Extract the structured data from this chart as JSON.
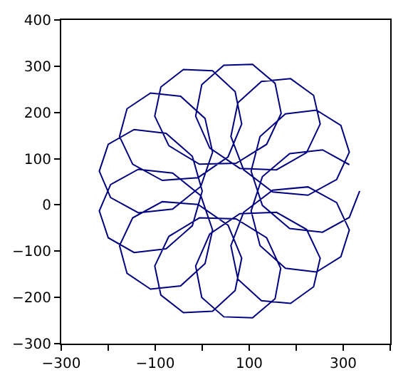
{
  "chart_data": {
    "type": "line",
    "series": [
      {
        "color": "#000080",
        "x": [
          335,
          313,
          256,
          186,
          128,
          104,
          123,
          177,
          243,
          295,
          313,
          286,
          225,
          150,
          88,
          61,
          76,
          126,
          188,
          237,
          251,
          222,
          158,
          80,
          16,
          -14,
          -1,
          46,
          107,
          155,
          168,
          137,
          72,
          -6,
          -71,
          -101,
          -88,
          -40,
          22,
          70,
          84,
          55,
          -9,
          -85,
          -148,
          -176,
          -160,
          -110,
          -46,
          6,
          22,
          -3,
          -63,
          -136,
          -195,
          -219,
          -200,
          -145,
          -77,
          -21,
          0,
          -21,
          -77,
          -145,
          -200,
          -219,
          -195,
          -136,
          -63,
          -3,
          22,
          6,
          -46,
          -110,
          -160,
          -176,
          -148,
          -85,
          -9,
          55,
          84,
          70,
          22,
          -40,
          -88,
          -101,
          -71,
          -6,
          72,
          137,
          167,
          155,
          107,
          46,
          -1,
          -14,
          16,
          80,
          158,
          222,
          251,
          237,
          188,
          126,
          76,
          61,
          88,
          150,
          225,
          286,
          313,
          295,
          243,
          177,
          123,
          104,
          128,
          186,
          256,
          313
        ],
        "values": [
          30,
          -27,
          -59,
          -51,
          -1,
          73,
          148,
          197,
          205,
          172,
          114,
          55,
          21,
          28,
          76,
          148,
          221,
          267,
          273,
          237,
          175,
          113,
          76,
          79,
          123,
          192,
          260,
          302,
          304,
          263,
          198,
          131,
          90,
          88,
          128,
          192,
          255,
          293,
          290,
          245,
          175,
          104,
          59,
          53,
          88,
          148,
          208,
          242,
          235,
          187,
          114,
          40,
          -9,
          -17,
          16,
          73,
          131,
          163,
          155,
          105,
          30,
          -45,
          -95,
          -103,
          -71,
          -13,
          44,
          77,
          69,
          20,
          -54,
          -127,
          -175,
          -182,
          -148,
          -88,
          -28,
          7,
          1,
          -44,
          -115,
          -185,
          -230,
          -233,
          -195,
          -132,
          -68,
          -28,
          -30,
          -71,
          -137,
          -203,
          -244,
          -242,
          -200,
          -132,
          -63,
          -19,
          -16,
          -53,
          -115,
          -177,
          -213,
          -207,
          -161,
          -88,
          -16,
          32,
          39,
          5,
          -54,
          -112,
          -145,
          -137,
          -88,
          -13,
          61,
          111,
          119,
          87
        ]
      }
    ],
    "xlim": [
      -300,
      400
    ],
    "xticks": [
      -300,
      {
        "value": -200,
        "label": null
      },
      -100,
      {
        "value": 0,
        "label": null
      },
      100,
      {
        "value": 200,
        "label": null
      },
      300,
      {
        "value": 400,
        "label": null
      }
    ],
    "ylim": [
      -300,
      400
    ],
    "yticks": [
      -300,
      -200,
      -100,
      0,
      100,
      200,
      300,
      400
    ],
    "legend": false,
    "marker": "none",
    "line_style": "solid"
  }
}
